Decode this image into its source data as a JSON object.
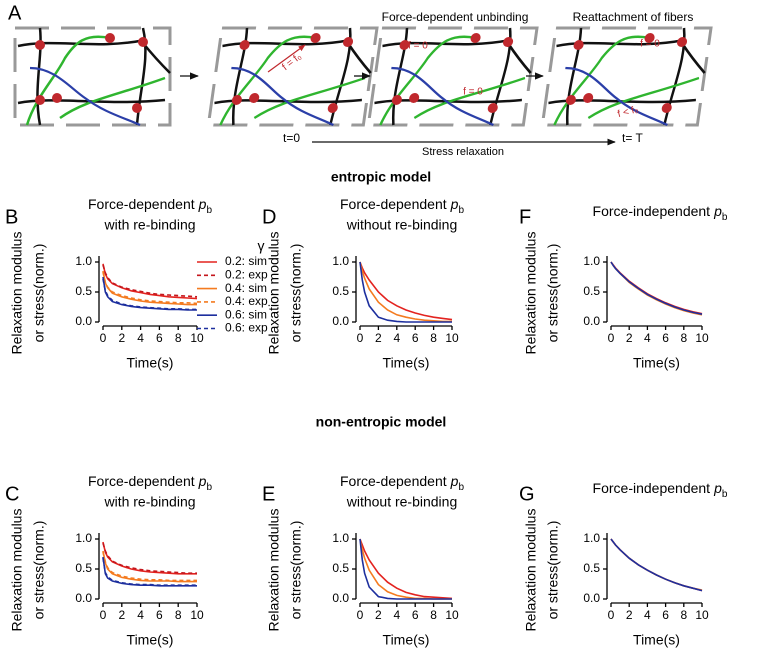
{
  "diagram": {
    "panel": "A",
    "step_labels": [
      "Force-dependent unbinding",
      "Reattachment of fibers"
    ],
    "force_labels": [
      "f = f₀",
      "f = 0",
      "f = 0",
      "f = 0",
      "f < f₀"
    ],
    "time_start": "t=0",
    "time_end": "t= T",
    "caption": "Stress relaxation"
  },
  "sections": [
    "entropic model",
    "non-entropic model"
  ],
  "chart_data": [
    {
      "type": "line",
      "panel": "B",
      "title": "Force-dependent",
      "title_symbol": "p",
      "title_subscript": "b",
      "subtitle": "with re-binding",
      "y_label": [
        "Relaxation modulus",
        "or stress(norm.)"
      ],
      "x_label": "Time(s)",
      "legend_title": "γ",
      "x": [
        0,
        0.25,
        0.5,
        1,
        2,
        3,
        4,
        5,
        6,
        7,
        8,
        9,
        10
      ],
      "xlim": [
        0,
        10
      ],
      "xticks": [
        0,
        2,
        4,
        6,
        8,
        10
      ],
      "ylim": [
        0,
        1.1
      ],
      "yticks": [
        {
          "value": 0,
          "label": "0.0"
        },
        {
          "value": 0.5,
          "label": "0.5"
        },
        {
          "value": 1,
          "label": "1.0"
        }
      ],
      "series": [
        {
          "name": "0.2: sim",
          "color": "#e3231f",
          "style": "solid",
          "values": [
            0.97,
            0.8,
            0.72,
            0.64,
            0.57,
            0.52,
            0.49,
            0.46,
            0.44,
            0.42,
            0.41,
            0.4,
            0.39
          ]
        },
        {
          "name": "0.2: exp",
          "color": "#c4161c",
          "style": "dashed",
          "values": [
            0.95,
            0.82,
            0.74,
            0.65,
            0.58,
            0.54,
            0.51,
            0.48,
            0.46,
            0.45,
            0.44,
            0.43,
            0.42
          ]
        },
        {
          "name": "0.4: sim",
          "color": "#f47b20",
          "style": "solid",
          "values": [
            0.85,
            0.65,
            0.57,
            0.48,
            0.42,
            0.38,
            0.35,
            0.33,
            0.32,
            0.31,
            0.3,
            0.29,
            0.29
          ]
        },
        {
          "name": "0.4: exp",
          "color": "#f47b20",
          "style": "dashed",
          "values": [
            0.83,
            0.66,
            0.58,
            0.5,
            0.44,
            0.4,
            0.37,
            0.35,
            0.34,
            0.33,
            0.32,
            0.32,
            0.31
          ]
        },
        {
          "name": "0.6: sim",
          "color": "#1d2f9e",
          "style": "solid",
          "values": [
            0.75,
            0.5,
            0.42,
            0.34,
            0.29,
            0.26,
            0.24,
            0.23,
            0.22,
            0.21,
            0.21,
            0.2,
            0.2
          ]
        },
        {
          "name": "0.6: exp",
          "color": "#1d2f9e",
          "style": "dashed",
          "values": [
            0.72,
            0.52,
            0.44,
            0.36,
            0.3,
            0.27,
            0.25,
            0.24,
            0.23,
            0.22,
            0.22,
            0.21,
            0.21
          ]
        }
      ]
    },
    {
      "type": "line",
      "panel": "D",
      "title": "Force-dependent",
      "title_symbol": "p",
      "title_subscript": "b",
      "subtitle": "without re-binding",
      "y_label": [
        "Relaxation modulus",
        "or stress(norm.)"
      ],
      "x_label": "Time(s)",
      "x": [
        0,
        0.25,
        0.5,
        1,
        2,
        3,
        4,
        5,
        6,
        7,
        8,
        9,
        10
      ],
      "xlim": [
        0,
        10
      ],
      "xticks": [
        0,
        2,
        4,
        6,
        8,
        10
      ],
      "ylim": [
        0,
        1.1
      ],
      "yticks": [
        {
          "value": 0,
          "label": "0.0"
        },
        {
          "value": 0.5,
          "label": "0.5"
        },
        {
          "value": 1,
          "label": "1.0"
        }
      ],
      "series": [
        {
          "color": "#e3231f",
          "style": "solid",
          "values": [
            1,
            0.9,
            0.82,
            0.7,
            0.5,
            0.36,
            0.27,
            0.2,
            0.15,
            0.11,
            0.08,
            0.06,
            0.04
          ]
        },
        {
          "color": "#f47b20",
          "style": "solid",
          "values": [
            1,
            0.85,
            0.73,
            0.55,
            0.33,
            0.2,
            0.12,
            0.08,
            0.05,
            0.03,
            0.02,
            0.01,
            0.01
          ]
        },
        {
          "color": "#1d2f9e",
          "style": "solid",
          "values": [
            1,
            0.7,
            0.5,
            0.27,
            0.08,
            0.03,
            0.01,
            0,
            0,
            0,
            0,
            0,
            0
          ]
        }
      ]
    },
    {
      "type": "line",
      "panel": "F",
      "title": "Force-independent",
      "title_symbol": "p",
      "title_subscript": "b",
      "y_label": [
        "Relaxation modulus",
        "or stress(norm.)"
      ],
      "x_label": "Time(s)",
      "x": [
        0,
        0.25,
        0.5,
        1,
        2,
        3,
        4,
        5,
        6,
        7,
        8,
        9,
        10
      ],
      "xlim": [
        0,
        10
      ],
      "xticks": [
        0,
        2,
        4,
        6,
        8,
        10
      ],
      "ylim": [
        0,
        1.1
      ],
      "yticks": [
        {
          "value": 0,
          "label": "0.0"
        },
        {
          "value": 0.5,
          "label": "0.5"
        },
        {
          "value": 1,
          "label": "1.0"
        }
      ],
      "series": [
        {
          "color": "#e3231f",
          "style": "solid",
          "values": [
            1,
            0.95,
            0.9,
            0.82,
            0.68,
            0.57,
            0.47,
            0.39,
            0.32,
            0.26,
            0.21,
            0.17,
            0.14
          ]
        },
        {
          "color": "#f47b20",
          "style": "solid",
          "values": [
            1,
            0.94,
            0.89,
            0.81,
            0.66,
            0.55,
            0.45,
            0.37,
            0.3,
            0.24,
            0.19,
            0.15,
            0.12
          ]
        },
        {
          "color": "#1d2f9e",
          "style": "solid",
          "values": [
            1,
            0.94,
            0.89,
            0.81,
            0.67,
            0.56,
            0.46,
            0.38,
            0.31,
            0.25,
            0.2,
            0.16,
            0.13
          ]
        }
      ]
    },
    {
      "type": "line",
      "panel": "C",
      "title": "Force-dependent",
      "title_symbol": "p",
      "title_subscript": "b",
      "subtitle": "with re-binding",
      "y_label": [
        "Relaxation modulus",
        "or stress(norm.)"
      ],
      "x_label": "Time(s)",
      "x": [
        0,
        0.25,
        0.5,
        1,
        2,
        3,
        4,
        5,
        6,
        7,
        8,
        9,
        10
      ],
      "xlim": [
        0,
        10
      ],
      "xticks": [
        0,
        2,
        4,
        6,
        8,
        10
      ],
      "ylim": [
        0,
        1.1
      ],
      "yticks": [
        {
          "value": 0,
          "label": "0.0"
        },
        {
          "value": 0.5,
          "label": "0.5"
        },
        {
          "value": 1,
          "label": "1.0"
        }
      ],
      "series": [
        {
          "color": "#e3231f",
          "style": "solid",
          "values": [
            0.95,
            0.78,
            0.7,
            0.62,
            0.55,
            0.5,
            0.47,
            0.45,
            0.44,
            0.43,
            0.42,
            0.42,
            0.42
          ]
        },
        {
          "color": "#c4161c",
          "style": "dashed",
          "values": [
            0.93,
            0.8,
            0.72,
            0.63,
            0.56,
            0.52,
            0.49,
            0.47,
            0.46,
            0.45,
            0.44,
            0.43,
            0.43
          ]
        },
        {
          "color": "#f47b20",
          "style": "solid",
          "values": [
            0.8,
            0.6,
            0.5,
            0.42,
            0.36,
            0.33,
            0.31,
            0.3,
            0.3,
            0.3,
            0.29,
            0.29,
            0.29
          ]
        },
        {
          "color": "#f47b20",
          "style": "dashed",
          "values": [
            0.78,
            0.62,
            0.52,
            0.44,
            0.38,
            0.35,
            0.33,
            0.32,
            0.32,
            0.31,
            0.31,
            0.31,
            0.31
          ]
        },
        {
          "color": "#1d2f9e",
          "style": "solid",
          "values": [
            0.7,
            0.42,
            0.35,
            0.3,
            0.26,
            0.24,
            0.23,
            0.23,
            0.22,
            0.22,
            0.22,
            0.22,
            0.22
          ]
        },
        {
          "color": "#1d2f9e",
          "style": "dashed",
          "values": [
            0.68,
            0.44,
            0.37,
            0.31,
            0.27,
            0.25,
            0.24,
            0.24,
            0.23,
            0.23,
            0.23,
            0.23,
            0.23
          ]
        }
      ]
    },
    {
      "type": "line",
      "panel": "E",
      "title": "Force-dependent",
      "title_symbol": "p",
      "title_subscript": "b",
      "subtitle": "without re-binding",
      "y_label": [
        "Relaxation modulus",
        "or stress(norm.)"
      ],
      "x_label": "Time(s)",
      "x": [
        0,
        0.25,
        0.5,
        1,
        2,
        3,
        4,
        5,
        6,
        7,
        8,
        9,
        10
      ],
      "xlim": [
        0,
        10
      ],
      "xticks": [
        0,
        2,
        4,
        6,
        8,
        10
      ],
      "ylim": [
        0,
        1.1
      ],
      "yticks": [
        {
          "value": 0,
          "label": "0.0"
        },
        {
          "value": 0.5,
          "label": "0.5"
        },
        {
          "value": 1,
          "label": "1.0"
        }
      ],
      "series": [
        {
          "color": "#e3231f",
          "style": "solid",
          "values": [
            1,
            0.9,
            0.8,
            0.65,
            0.43,
            0.28,
            0.18,
            0.11,
            0.07,
            0.04,
            0.03,
            0.02,
            0.01
          ]
        },
        {
          "color": "#f47b20",
          "style": "solid",
          "values": [
            1,
            0.82,
            0.68,
            0.48,
            0.24,
            0.12,
            0.06,
            0.03,
            0.01,
            0.01,
            0,
            0,
            0
          ]
        },
        {
          "color": "#1d2f9e",
          "style": "solid",
          "values": [
            1,
            0.65,
            0.43,
            0.2,
            0.04,
            0.01,
            0,
            0,
            0,
            0,
            0,
            0,
            0
          ]
        }
      ]
    },
    {
      "type": "line",
      "panel": "G",
      "title": "Force-independent",
      "title_symbol": "p",
      "title_subscript": "b",
      "y_label": [
        "Relaxation modulus",
        "or stress(norm.)"
      ],
      "x_label": "Time(s)",
      "x": [
        0,
        0.25,
        0.5,
        1,
        2,
        3,
        4,
        5,
        6,
        7,
        8,
        9,
        10
      ],
      "xlim": [
        0,
        10
      ],
      "xticks": [
        0,
        2,
        4,
        6,
        8,
        10
      ],
      "ylim": [
        0,
        1.1
      ],
      "yticks": [
        {
          "value": 0,
          "label": "0.0"
        },
        {
          "value": 0.5,
          "label": "0.5"
        },
        {
          "value": 1,
          "label": "1.0"
        }
      ],
      "series": [
        {
          "color": "#e3231f",
          "style": "solid",
          "values": [
            1,
            0.95,
            0.9,
            0.82,
            0.68,
            0.57,
            0.48,
            0.4,
            0.33,
            0.27,
            0.22,
            0.18,
            0.14
          ]
        },
        {
          "color": "#f47b20",
          "style": "solid",
          "values": [
            1,
            0.95,
            0.9,
            0.82,
            0.68,
            0.57,
            0.48,
            0.4,
            0.33,
            0.27,
            0.22,
            0.18,
            0.15
          ]
        },
        {
          "color": "#1d2f9e",
          "style": "solid",
          "values": [
            1,
            0.95,
            0.9,
            0.82,
            0.68,
            0.57,
            0.48,
            0.4,
            0.33,
            0.27,
            0.22,
            0.18,
            0.14
          ]
        }
      ]
    }
  ]
}
